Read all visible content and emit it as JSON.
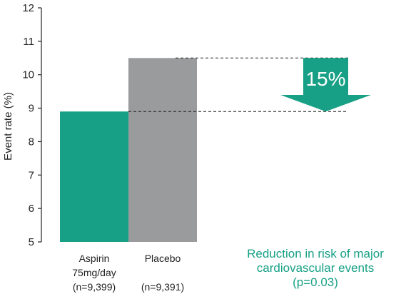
{
  "chart_data": {
    "type": "bar",
    "ylabel": "Event rate (%)",
    "ylim": [
      5,
      12
    ],
    "yticks": [
      5,
      6,
      7,
      8,
      9,
      10,
      11,
      12
    ],
    "categories": [
      {
        "lines": [
          "Aspirin",
          "75mg/day",
          "(n=9,399)"
        ],
        "value": 8.9,
        "color": "#17a085"
      },
      {
        "lines": [
          "Placebo",
          "",
          "(n=9,391)"
        ],
        "value": 10.5,
        "color": "#9a9b9d"
      }
    ],
    "annotation": {
      "value": "15%",
      "from": 10.5,
      "to": 8.9,
      "color": "#17a085",
      "note_lines": [
        "Reduction in risk of major",
        "cardiovascular events",
        "(p=0.03)"
      ]
    }
  }
}
